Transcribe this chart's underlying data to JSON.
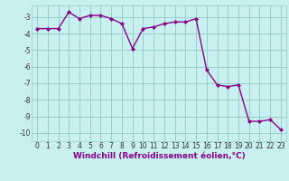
{
  "x": [
    0,
    1,
    2,
    3,
    4,
    5,
    6,
    7,
    8,
    9,
    10,
    11,
    12,
    13,
    14,
    15,
    16,
    17,
    18,
    19,
    20,
    21,
    22,
    23
  ],
  "y": [
    -3.7,
    -3.7,
    -3.7,
    -2.7,
    -3.1,
    -2.9,
    -2.9,
    -3.1,
    -3.4,
    -4.9,
    -3.7,
    -3.6,
    -3.4,
    -3.3,
    -3.3,
    -3.1,
    -6.2,
    -7.1,
    -7.2,
    -7.1,
    -9.3,
    -9.3,
    -9.2,
    -9.8
  ],
  "line_color": "#880088",
  "marker": "D",
  "markersize": 2.0,
  "linewidth": 1.0,
  "bg_color": "#c8f0f0",
  "grid_color": "#99cccc",
  "xlabel": "Windchill (Refroidissement éolien,°C)",
  "xlabel_fontsize": 6.5,
  "xlabel_color": "#880088",
  "ylabel_ticks": [
    -10,
    -9,
    -8,
    -7,
    -6,
    -5,
    -4,
    -3
  ],
  "xtick_labels": [
    "0",
    "1",
    "2",
    "3",
    "4",
    "5",
    "6",
    "7",
    "8",
    "9",
    "10",
    "11",
    "12",
    "13",
    "14",
    "15",
    "16",
    "17",
    "18",
    "19",
    "20",
    "21",
    "22",
    "23"
  ],
  "ylim": [
    -10.5,
    -2.3
  ],
  "xlim": [
    -0.5,
    23.5
  ],
  "tick_fontsize": 5.5,
  "tick_color": "#333333"
}
